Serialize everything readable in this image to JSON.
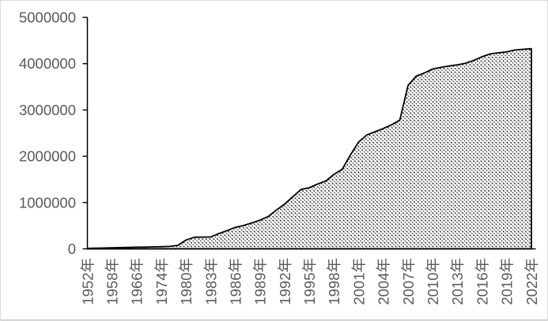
{
  "chart_data": {
    "type": "area",
    "title": "",
    "xlabel": "",
    "ylabel": "",
    "ylim": [
      0,
      5000000
    ],
    "grid": false,
    "legend": "none",
    "y_ticks": [
      0,
      1000000,
      2000000,
      3000000,
      4000000,
      5000000
    ],
    "y_tick_labels": [
      "0",
      "1000000",
      "2000000",
      "3000000",
      "4000000",
      "5000000"
    ],
    "x_tick_labels": [
      "1952年",
      "1958年",
      "1966年",
      "1974年",
      "1980年",
      "1983年",
      "1986年",
      "1989年",
      "1992年",
      "1995年",
      "1998年",
      "2001年",
      "2004年",
      "2007年",
      "2010年",
      "2013年",
      "2016年",
      "2019年",
      "2022年"
    ],
    "x_label_every_n_points": 3,
    "series": [
      {
        "name": "value",
        "fill_style": "black-diagonal-hatch-on-white",
        "values": [
          10000,
          13000,
          18000,
          23000,
          28000,
          32000,
          35000,
          38000,
          42000,
          46000,
          52000,
          75000,
          190000,
          250000,
          253000,
          258000,
          330000,
          395000,
          465000,
          505000,
          560000,
          620000,
          700000,
          840000,
          970000,
          1130000,
          1285000,
          1320000,
          1400000,
          1465000,
          1610000,
          1720000,
          2030000,
          2310000,
          2460000,
          2530000,
          2600000,
          2680000,
          2780000,
          3530000,
          3730000,
          3800000,
          3885000,
          3920000,
          3950000,
          3975000,
          4010000,
          4070000,
          4150000,
          4210000,
          4235000,
          4255000,
          4295000,
          4310000,
          4325000
        ]
      }
    ],
    "colors": {
      "background": "#ffffff",
      "axis_line": "#000000",
      "series_outline": "#000000",
      "hatch_stroke": "#111111",
      "tick_label": "#595959",
      "frame_border": "#dcdcdc"
    }
  }
}
